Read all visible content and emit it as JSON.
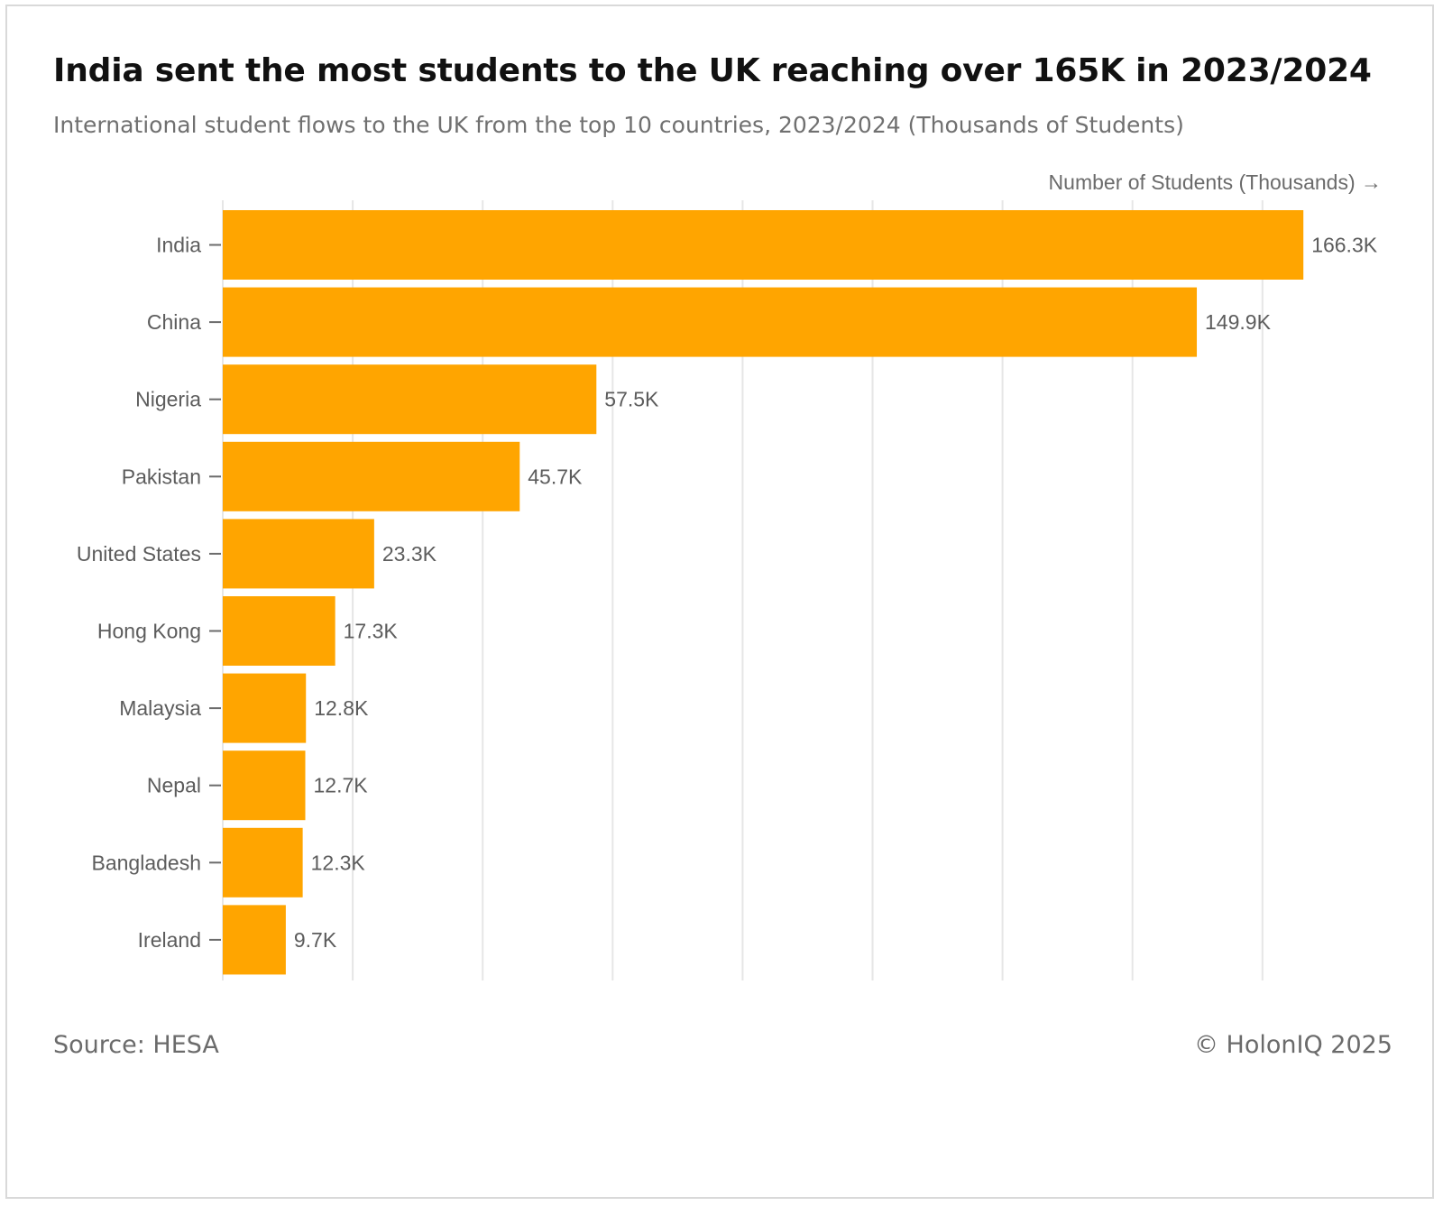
{
  "header": {
    "title": "India sent the most students to the UK reaching over 165K in 2023/2024",
    "subtitle": "International student flows to the UK from the top 10 countries, 2023/2024 (Thousands of Students)"
  },
  "footer": {
    "source": "Source: HESA",
    "copyright": "© HolonIQ 2025"
  },
  "colors": {
    "bar": "#FFA500",
    "grid": "#e6e6e6"
  },
  "chart_data": {
    "type": "bar",
    "orientation": "horizontal",
    "title": "India sent the most students to the UK reaching over 165K in 2023/2024",
    "subtitle": "International student flows to the UK from the top 10 countries, 2023/2024 (Thousands of Students)",
    "xlabel": "Number of Students (Thousands) →",
    "ylabel": "",
    "categories": [
      "India",
      "China",
      "Nigeria",
      "Pakistan",
      "United States",
      "Hong Kong",
      "Malaysia",
      "Nepal",
      "Bangladesh",
      "Ireland"
    ],
    "values": [
      166.3,
      149.9,
      57.5,
      45.7,
      23.3,
      17.3,
      12.8,
      12.7,
      12.3,
      9.7
    ],
    "data_labels": [
      "166.3K",
      "149.9K",
      "57.5K",
      "45.7K",
      "23.3K",
      "17.3K",
      "12.8K",
      "12.7K",
      "12.3K",
      "9.7K"
    ],
    "xlim": [
      0,
      180
    ],
    "grid_step": 20,
    "grid": true,
    "legend": "none"
  }
}
